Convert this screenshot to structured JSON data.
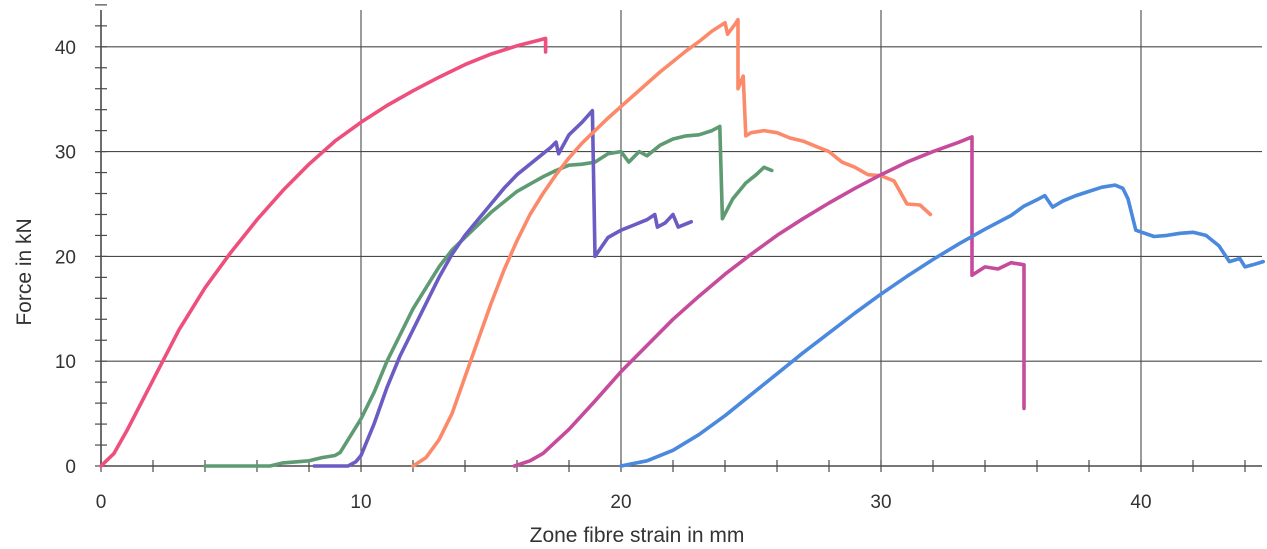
{
  "chart_data": {
    "type": "line",
    "title": "",
    "xlabel": "Zone fibre strain in mm",
    "ylabel": "Force in kN",
    "xlim": [
      0,
      44.8
    ],
    "ylim": [
      0,
      44
    ],
    "x_ticks": [
      0,
      10,
      20,
      30,
      40
    ],
    "y_ticks": [
      0,
      10,
      20,
      30,
      40
    ],
    "x_tick_labels": [
      "0",
      "10",
      "20",
      "30",
      "40"
    ],
    "y_tick_labels": [
      "0",
      "10",
      "20",
      "30",
      "40"
    ],
    "grid": true,
    "legend": "none",
    "series": [
      {
        "color": "#ee4f7c",
        "points": [
          [
            0,
            0
          ],
          [
            0.5,
            1.2
          ],
          [
            1,
            3.4
          ],
          [
            2,
            8.2
          ],
          [
            3,
            13
          ],
          [
            4,
            17
          ],
          [
            5,
            20.4
          ],
          [
            6,
            23.5
          ],
          [
            7,
            26.3
          ],
          [
            8,
            28.8
          ],
          [
            9,
            31
          ],
          [
            10,
            32.8
          ],
          [
            11,
            34.4
          ],
          [
            12,
            35.8
          ],
          [
            13,
            37.1
          ],
          [
            14,
            38.3
          ],
          [
            15,
            39.3
          ],
          [
            16,
            40.1
          ],
          [
            16.8,
            40.6
          ],
          [
            17.1,
            40.8
          ],
          [
            17.1,
            39.5
          ]
        ]
      },
      {
        "color": "#5e9a72",
        "points": [
          [
            4,
            0
          ],
          [
            6.5,
            0
          ],
          [
            7,
            0.3
          ],
          [
            8,
            0.5
          ],
          [
            8.5,
            0.8
          ],
          [
            9,
            1
          ],
          [
            9.2,
            1.3
          ],
          [
            9.5,
            2.5
          ],
          [
            10,
            4.5
          ],
          [
            10.5,
            7
          ],
          [
            11,
            10
          ],
          [
            11.5,
            12.5
          ],
          [
            12,
            15
          ],
          [
            12.5,
            17
          ],
          [
            13,
            19
          ],
          [
            13.5,
            20.6
          ],
          [
            14,
            21.8
          ],
          [
            14.5,
            23
          ],
          [
            15,
            24.2
          ],
          [
            15.5,
            25.2
          ],
          [
            16,
            26.2
          ],
          [
            16.5,
            26.9
          ],
          [
            17,
            27.6
          ],
          [
            17.5,
            28.2
          ],
          [
            18,
            28.7
          ],
          [
            18.5,
            28.8
          ],
          [
            19,
            29
          ],
          [
            19.5,
            29.8
          ],
          [
            20,
            30
          ],
          [
            20.3,
            29
          ],
          [
            20.7,
            30
          ],
          [
            21,
            29.6
          ],
          [
            21.5,
            30.6
          ],
          [
            22,
            31.2
          ],
          [
            22.5,
            31.5
          ],
          [
            23,
            31.6
          ],
          [
            23.5,
            32
          ],
          [
            23.8,
            32.4
          ],
          [
            23.9,
            23.6
          ],
          [
            24.3,
            25.5
          ],
          [
            24.8,
            27
          ],
          [
            25.2,
            27.8
          ],
          [
            25.5,
            28.5
          ],
          [
            25.8,
            28.2
          ]
        ]
      },
      {
        "color": "#6a5cc2",
        "points": [
          [
            8.2,
            0
          ],
          [
            9.5,
            0
          ],
          [
            9.8,
            0.4
          ],
          [
            10,
            1
          ],
          [
            10.5,
            4
          ],
          [
            11,
            7.5
          ],
          [
            11.5,
            10.5
          ],
          [
            12,
            13
          ],
          [
            12.5,
            15.5
          ],
          [
            13,
            18
          ],
          [
            13.5,
            20.2
          ],
          [
            14,
            22
          ],
          [
            14.5,
            23.5
          ],
          [
            15,
            25
          ],
          [
            15.5,
            26.5
          ],
          [
            16,
            27.8
          ],
          [
            16.5,
            28.8
          ],
          [
            17,
            29.8
          ],
          [
            17.3,
            30.4
          ],
          [
            17.5,
            30.9
          ],
          [
            17.6,
            29.8
          ],
          [
            18,
            31.6
          ],
          [
            18.5,
            32.8
          ],
          [
            18.9,
            33.9
          ],
          [
            19,
            20
          ],
          [
            19.5,
            21.8
          ],
          [
            20,
            22.5
          ],
          [
            20.5,
            23
          ],
          [
            21,
            23.5
          ],
          [
            21.3,
            24
          ],
          [
            21.4,
            22.8
          ],
          [
            21.7,
            23.2
          ],
          [
            22,
            24
          ],
          [
            22.2,
            22.8
          ],
          [
            22.7,
            23.3
          ]
        ]
      },
      {
        "color": "#fc8a6a",
        "points": [
          [
            12,
            0
          ],
          [
            12.5,
            0.8
          ],
          [
            13,
            2.5
          ],
          [
            13.5,
            5
          ],
          [
            14,
            8.5
          ],
          [
            14.5,
            12
          ],
          [
            15,
            15.5
          ],
          [
            15.5,
            18.7
          ],
          [
            16,
            21.5
          ],
          [
            16.5,
            24
          ],
          [
            17,
            26
          ],
          [
            17.5,
            27.8
          ],
          [
            18,
            29.4
          ],
          [
            18.5,
            30.8
          ],
          [
            19,
            32
          ],
          [
            19.5,
            33.2
          ],
          [
            20,
            34.3
          ],
          [
            20.5,
            35.4
          ],
          [
            21,
            36.5
          ],
          [
            21.5,
            37.6
          ],
          [
            22,
            38.6
          ],
          [
            22.5,
            39.6
          ],
          [
            23,
            40.5
          ],
          [
            23.5,
            41.5
          ],
          [
            24,
            42.3
          ],
          [
            24.1,
            41.2
          ],
          [
            24.4,
            42.2
          ],
          [
            24.5,
            42.6
          ],
          [
            24.5,
            36
          ],
          [
            24.7,
            37.2
          ],
          [
            24.8,
            31.5
          ],
          [
            25,
            31.8
          ],
          [
            25.5,
            32
          ],
          [
            26,
            31.8
          ],
          [
            26.5,
            31.3
          ],
          [
            27,
            31
          ],
          [
            27.5,
            30.5
          ],
          [
            28,
            30
          ],
          [
            28.5,
            29
          ],
          [
            29,
            28.5
          ],
          [
            29.5,
            27.8
          ],
          [
            30,
            27.7
          ],
          [
            30.5,
            27.2
          ],
          [
            31,
            25
          ],
          [
            31.5,
            24.9
          ],
          [
            31.9,
            24
          ]
        ]
      },
      {
        "color": "#c64b9c",
        "points": [
          [
            15.9,
            0
          ],
          [
            16.5,
            0.5
          ],
          [
            17,
            1.2
          ],
          [
            18,
            3.5
          ],
          [
            19,
            6.2
          ],
          [
            20,
            9
          ],
          [
            21,
            11.5
          ],
          [
            22,
            14
          ],
          [
            23,
            16.2
          ],
          [
            24,
            18.3
          ],
          [
            25,
            20.2
          ],
          [
            26,
            22
          ],
          [
            27,
            23.6
          ],
          [
            28,
            25.1
          ],
          [
            29,
            26.5
          ],
          [
            30,
            27.8
          ],
          [
            31,
            29
          ],
          [
            32,
            30
          ],
          [
            33,
            30.9
          ],
          [
            33.5,
            31.4
          ],
          [
            33.5,
            18.2
          ],
          [
            34,
            19
          ],
          [
            34.5,
            18.8
          ],
          [
            35,
            19.4
          ],
          [
            35.5,
            19.2
          ],
          [
            35.5,
            5.5
          ]
        ]
      },
      {
        "color": "#4a89de",
        "points": [
          [
            20,
            0
          ],
          [
            21,
            0.5
          ],
          [
            22,
            1.5
          ],
          [
            23,
            3
          ],
          [
            24,
            4.8
          ],
          [
            25,
            6.8
          ],
          [
            26,
            8.8
          ],
          [
            27,
            10.8
          ],
          [
            28,
            12.7
          ],
          [
            29,
            14.6
          ],
          [
            30,
            16.4
          ],
          [
            31,
            18.1
          ],
          [
            32,
            19.7
          ],
          [
            33,
            21.2
          ],
          [
            34,
            22.6
          ],
          [
            35,
            23.9
          ],
          [
            35.5,
            24.8
          ],
          [
            36,
            25.4
          ],
          [
            36.3,
            25.8
          ],
          [
            36.6,
            24.7
          ],
          [
            37,
            25.3
          ],
          [
            37.5,
            25.8
          ],
          [
            38,
            26.2
          ],
          [
            38.5,
            26.6
          ],
          [
            39,
            26.8
          ],
          [
            39.3,
            26.5
          ],
          [
            39.5,
            25.5
          ],
          [
            39.8,
            22.5
          ],
          [
            40.5,
            21.9
          ],
          [
            41,
            22
          ],
          [
            41.5,
            22.2
          ],
          [
            42,
            22.3
          ],
          [
            42.5,
            22
          ],
          [
            43,
            21
          ],
          [
            43.4,
            19.5
          ],
          [
            43.8,
            19.8
          ],
          [
            44,
            19
          ],
          [
            44.3,
            19.2
          ],
          [
            44.7,
            19.5
          ]
        ]
      }
    ]
  }
}
